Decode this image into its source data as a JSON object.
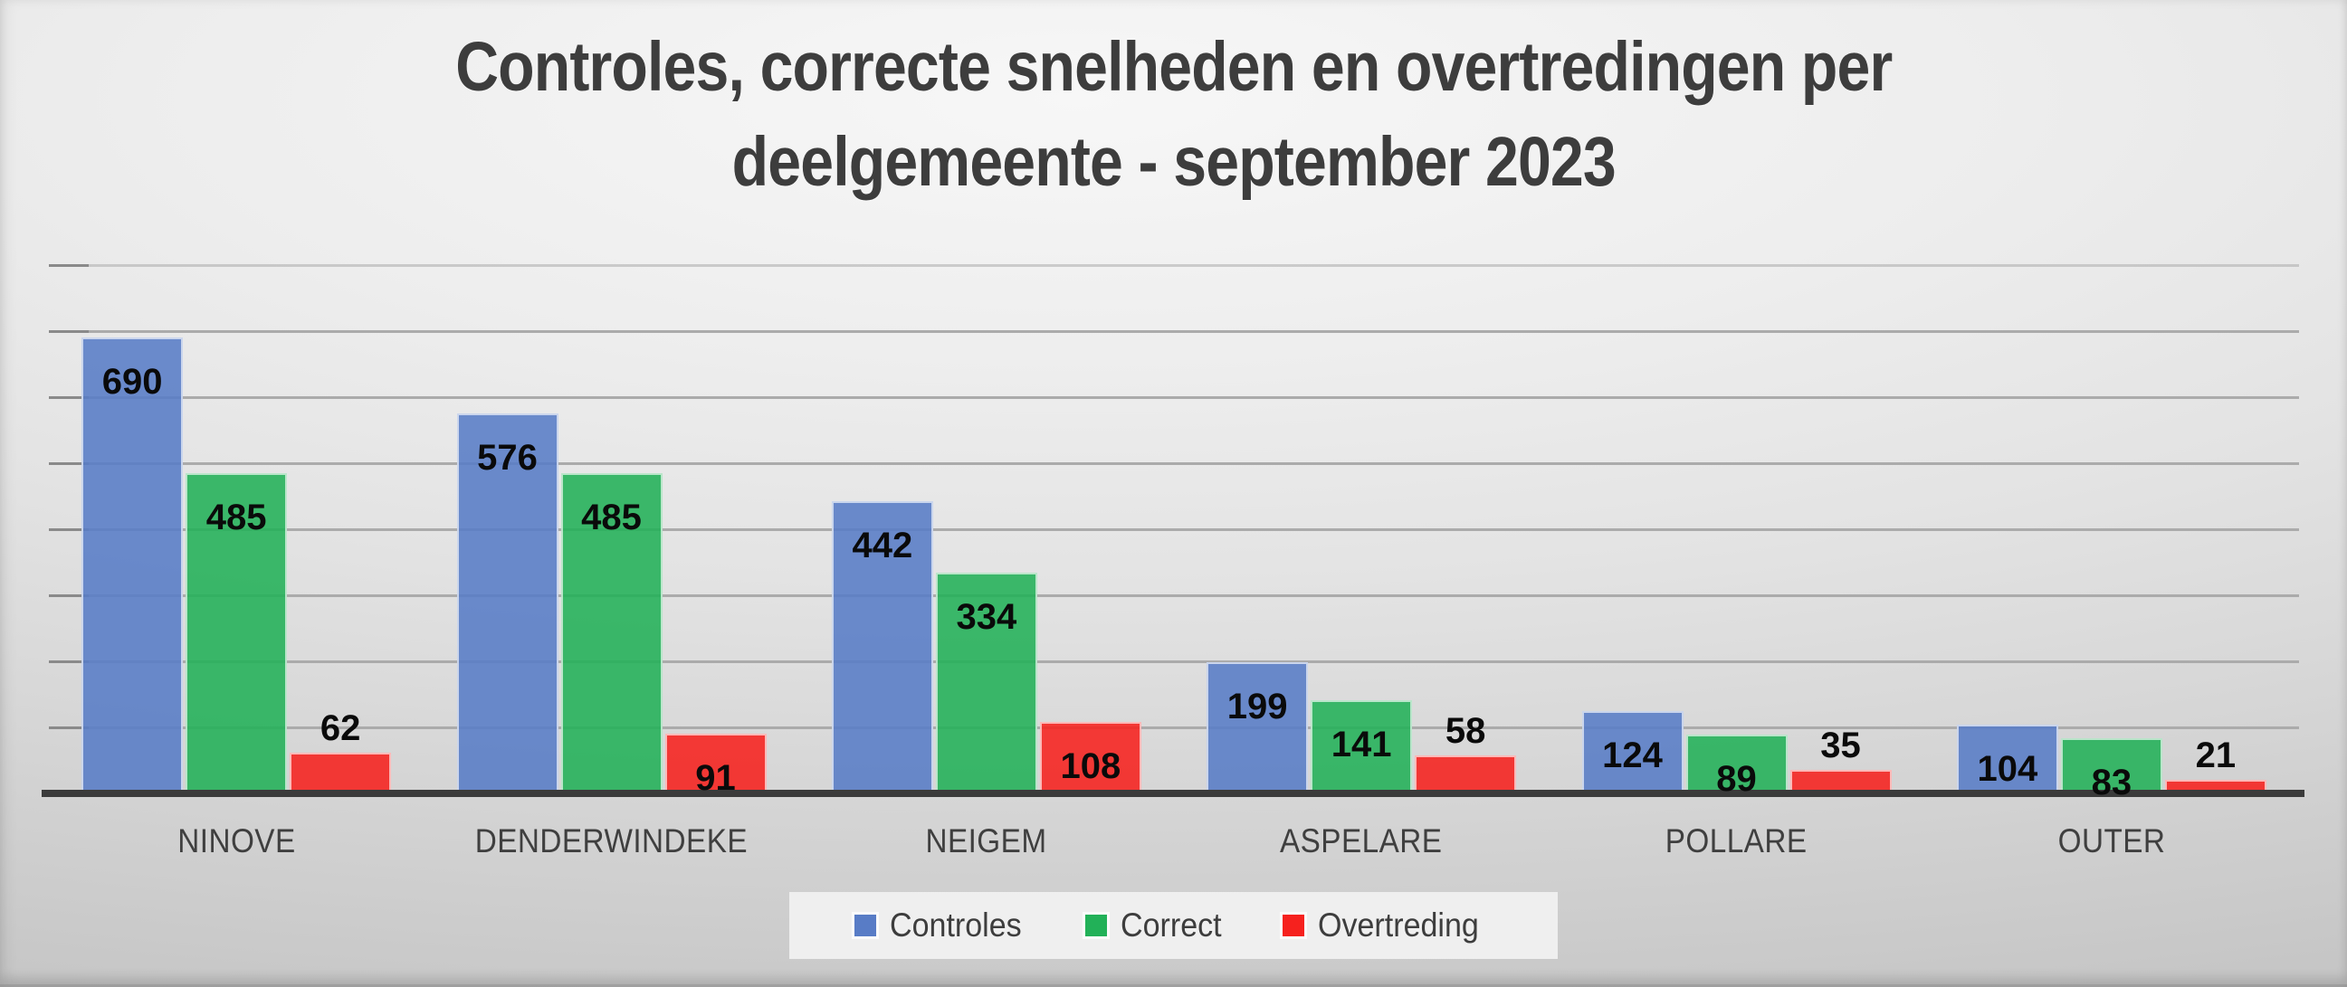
{
  "title": {
    "line1": "Controles, correcte snelheden en overtredingen per",
    "line2": "deelgemeente - september 2023"
  },
  "chart_data": {
    "type": "bar",
    "title": "Controles, correcte snelheden en overtredingen per deelgemeente - september 2023",
    "categories": [
      "NINOVE",
      "DENDERWINDEKE",
      "NEIGEM",
      "ASPELARE",
      "POLLARE",
      "OUTER"
    ],
    "series": [
      {
        "name": "Controles",
        "color": "#587CC6",
        "values": [
          690,
          576,
          442,
          199,
          124,
          104
        ]
      },
      {
        "name": "Correct",
        "color": "#22B158",
        "values": [
          485,
          485,
          334,
          141,
          89,
          83
        ]
      },
      {
        "name": "Overtreding",
        "color": "#F6211E",
        "values": [
          62,
          91,
          108,
          58,
          35,
          21
        ]
      }
    ],
    "ylim": [
      0,
      800
    ],
    "y_major_unit": 100,
    "y_tick_labels": "hidden",
    "grid": true,
    "legend_position": "bottom",
    "data_labels": "inside-end"
  },
  "colors": {
    "controles_blue": "#587CC6",
    "correct_green": "#22B158",
    "overtreding_red": "#F6211E",
    "gridline": "#ABABAB",
    "axis_tick": "#8A8A8A",
    "axis_line": "#3B3B3B",
    "title_text": "#3D3D3D",
    "category_text": "#3F3F3F",
    "value_text": "#0A0A0A",
    "legend_text": "#3D3D3D",
    "background_light": "#F7F7F7",
    "background_dark": "#C6C6C6"
  }
}
